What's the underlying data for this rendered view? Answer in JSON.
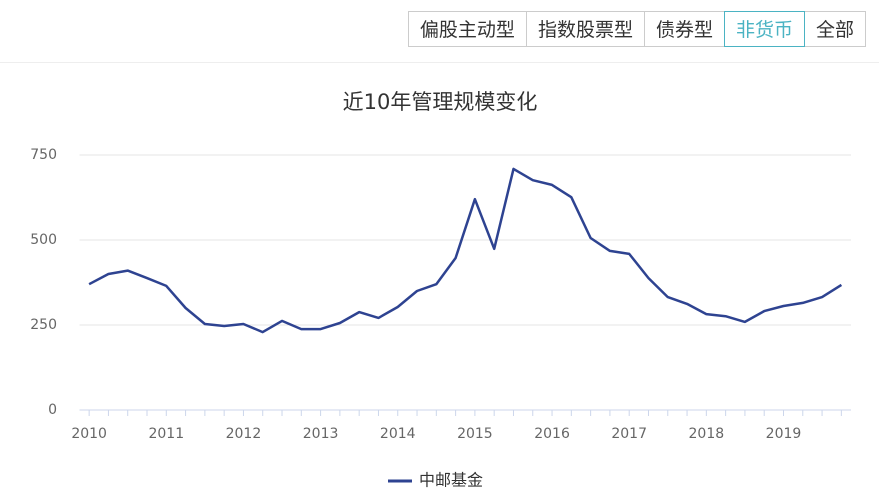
{
  "tabs": [
    {
      "label": "偏股主动型",
      "active": false
    },
    {
      "label": "指数股票型",
      "active": false
    },
    {
      "label": "债券型",
      "active": false
    },
    {
      "label": "非货币",
      "active": true
    },
    {
      "label": "全部",
      "active": false
    }
  ],
  "chart_data": {
    "type": "line",
    "title": "近10年管理规模变化",
    "categories": [
      "2010",
      null,
      null,
      null,
      "2011",
      null,
      null,
      null,
      "2012",
      null,
      null,
      null,
      "2013",
      null,
      null,
      null,
      "2014",
      null,
      null,
      null,
      "2015",
      null,
      null,
      null,
      "2016",
      null,
      null,
      null,
      "2017",
      null,
      null,
      null,
      "2018",
      null,
      null,
      null,
      "2019",
      null,
      null,
      null
    ],
    "series": [
      {
        "name": "中邮基金",
        "color": "#2e4391",
        "values": [
          370,
          400,
          410,
          388,
          365,
          300,
          253,
          247,
          253,
          229,
          262,
          238,
          238,
          256,
          288,
          271,
          303,
          350,
          370,
          447,
          620,
          474,
          709,
          676,
          662,
          626,
          506,
          468,
          459,
          388,
          332,
          312,
          282,
          276,
          259,
          291,
          306,
          315,
          332,
          368
        ]
      }
    ],
    "ylim": [
      0,
      750
    ],
    "yticks": [
      0,
      250,
      500,
      750
    ],
    "grid": true,
    "legend": "bottom"
  }
}
